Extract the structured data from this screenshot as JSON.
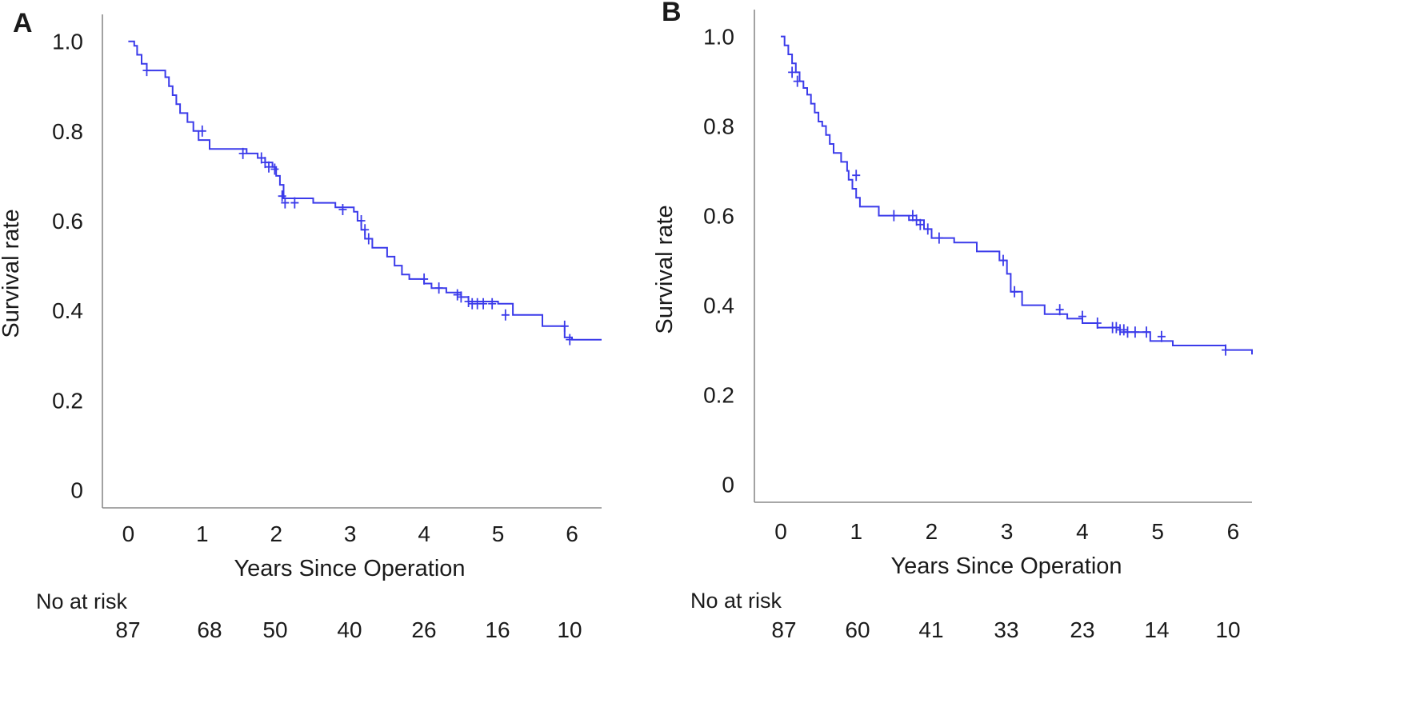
{
  "chart_data": [
    {
      "type": "line",
      "panel": "A",
      "xlabel": "Years Since Operation",
      "ylabel": "Survival rate",
      "xlim": [
        -0.35,
        6.4
      ],
      "ylim": [
        -0.04,
        1.06
      ],
      "xticks": [
        0,
        1,
        2,
        3,
        4,
        5,
        6
      ],
      "xtick_labels": [
        "0",
        "1",
        "2",
        "3",
        "4",
        "5",
        "6"
      ],
      "yticks": [
        0,
        0.2,
        0.4,
        0.6,
        0.8,
        1.0
      ],
      "ytick_labels": [
        "0",
        "0.2",
        "0.4",
        "0.6",
        "0.8",
        "1.0"
      ],
      "color": "#3b3bea",
      "series": [
        {
          "name": "Survival",
          "step_x": [
            0,
            0.08,
            0.12,
            0.18,
            0.25,
            0.5,
            0.55,
            0.6,
            0.65,
            0.7,
            0.8,
            0.88,
            0.95,
            1.1,
            1.2,
            1.4,
            1.6,
            1.75,
            1.85,
            1.95,
            2.0,
            2.05,
            2.1,
            2.5,
            2.8,
            3.05,
            3.1,
            3.15,
            3.2,
            3.3,
            3.5,
            3.6,
            3.7,
            3.8,
            4.0,
            4.1,
            4.3,
            4.5,
            4.6,
            5.0,
            5.2,
            5.6,
            5.9,
            6.0,
            6.4
          ],
          "step_y": [
            1.0,
            0.99,
            0.97,
            0.95,
            0.935,
            0.92,
            0.9,
            0.88,
            0.86,
            0.84,
            0.82,
            0.8,
            0.78,
            0.76,
            0.76,
            0.76,
            0.75,
            0.74,
            0.73,
            0.72,
            0.7,
            0.68,
            0.65,
            0.64,
            0.63,
            0.62,
            0.6,
            0.58,
            0.56,
            0.54,
            0.52,
            0.5,
            0.48,
            0.47,
            0.46,
            0.45,
            0.44,
            0.43,
            0.42,
            0.415,
            0.39,
            0.365,
            0.34,
            0.335,
            0.335
          ],
          "censored_x": [
            0.25,
            1.0,
            1.55,
            1.8,
            1.85,
            1.9,
            1.98,
            2.08,
            2.12,
            2.25,
            2.9,
            3.15,
            3.2,
            3.25,
            4.0,
            4.2,
            4.45,
            4.5,
            4.6,
            4.65,
            4.72,
            4.8,
            4.92,
            5.1,
            5.9,
            5.97
          ],
          "censored_y": [
            0.935,
            0.8,
            0.75,
            0.74,
            0.73,
            0.72,
            0.715,
            0.655,
            0.64,
            0.64,
            0.625,
            0.6,
            0.58,
            0.56,
            0.47,
            0.45,
            0.435,
            0.43,
            0.42,
            0.415,
            0.415,
            0.415,
            0.415,
            0.39,
            0.365,
            0.335
          ]
        }
      ],
      "risk_table": {
        "label": "No at risk",
        "values": [
          "87",
          "68",
          "50",
          "40",
          "26",
          "16",
          "10"
        ]
      }
    },
    {
      "type": "line",
      "panel": "B",
      "xlabel": "Years Since Operation",
      "ylabel": "Survival rate",
      "xlim": [
        -0.35,
        6.25
      ],
      "ylim": [
        -0.04,
        1.06
      ],
      "xticks": [
        0,
        1,
        2,
        3,
        4,
        5,
        6
      ],
      "xtick_labels": [
        "0",
        "1",
        "2",
        "3",
        "4",
        "5",
        "6"
      ],
      "yticks": [
        0,
        0.2,
        0.4,
        0.6,
        0.8,
        1.0
      ],
      "ytick_labels": [
        "0",
        "0.2",
        "0.4",
        "0.6",
        "0.8",
        "1.0"
      ],
      "color": "#3b3bea",
      "series": [
        {
          "name": "Survival",
          "step_x": [
            0,
            0.05,
            0.1,
            0.15,
            0.2,
            0.25,
            0.3,
            0.35,
            0.4,
            0.45,
            0.5,
            0.55,
            0.6,
            0.65,
            0.7,
            0.8,
            0.88,
            0.9,
            0.95,
            1.0,
            1.05,
            1.1,
            1.3,
            1.5,
            1.7,
            1.9,
            2.0,
            2.3,
            2.6,
            2.9,
            3.0,
            3.05,
            3.2,
            3.5,
            3.8,
            4.0,
            4.2,
            4.5,
            4.9,
            5.2,
            5.9,
            6.25
          ],
          "step_y": [
            1.0,
            0.98,
            0.96,
            0.94,
            0.92,
            0.9,
            0.885,
            0.87,
            0.85,
            0.83,
            0.81,
            0.8,
            0.78,
            0.76,
            0.74,
            0.72,
            0.7,
            0.68,
            0.66,
            0.64,
            0.62,
            0.62,
            0.6,
            0.6,
            0.59,
            0.57,
            0.55,
            0.54,
            0.52,
            0.5,
            0.47,
            0.43,
            0.4,
            0.38,
            0.37,
            0.36,
            0.35,
            0.34,
            0.32,
            0.31,
            0.3,
            0.29
          ],
          "censored_x": [
            0.15,
            0.22,
            1.0,
            1.5,
            1.75,
            1.8,
            1.85,
            1.95,
            2.1,
            2.95,
            3.1,
            3.7,
            4.0,
            4.2,
            4.4,
            4.45,
            4.5,
            4.55,
            4.6,
            4.7,
            4.85,
            5.05,
            5.9
          ],
          "censored_y": [
            0.92,
            0.9,
            0.69,
            0.6,
            0.6,
            0.59,
            0.58,
            0.57,
            0.55,
            0.5,
            0.43,
            0.39,
            0.375,
            0.36,
            0.35,
            0.35,
            0.345,
            0.345,
            0.34,
            0.34,
            0.34,
            0.33,
            0.3
          ]
        }
      ],
      "risk_table": {
        "label": "No at risk",
        "values": [
          "87",
          "60",
          "41",
          "33",
          "23",
          "14",
          "10"
        ]
      }
    }
  ]
}
